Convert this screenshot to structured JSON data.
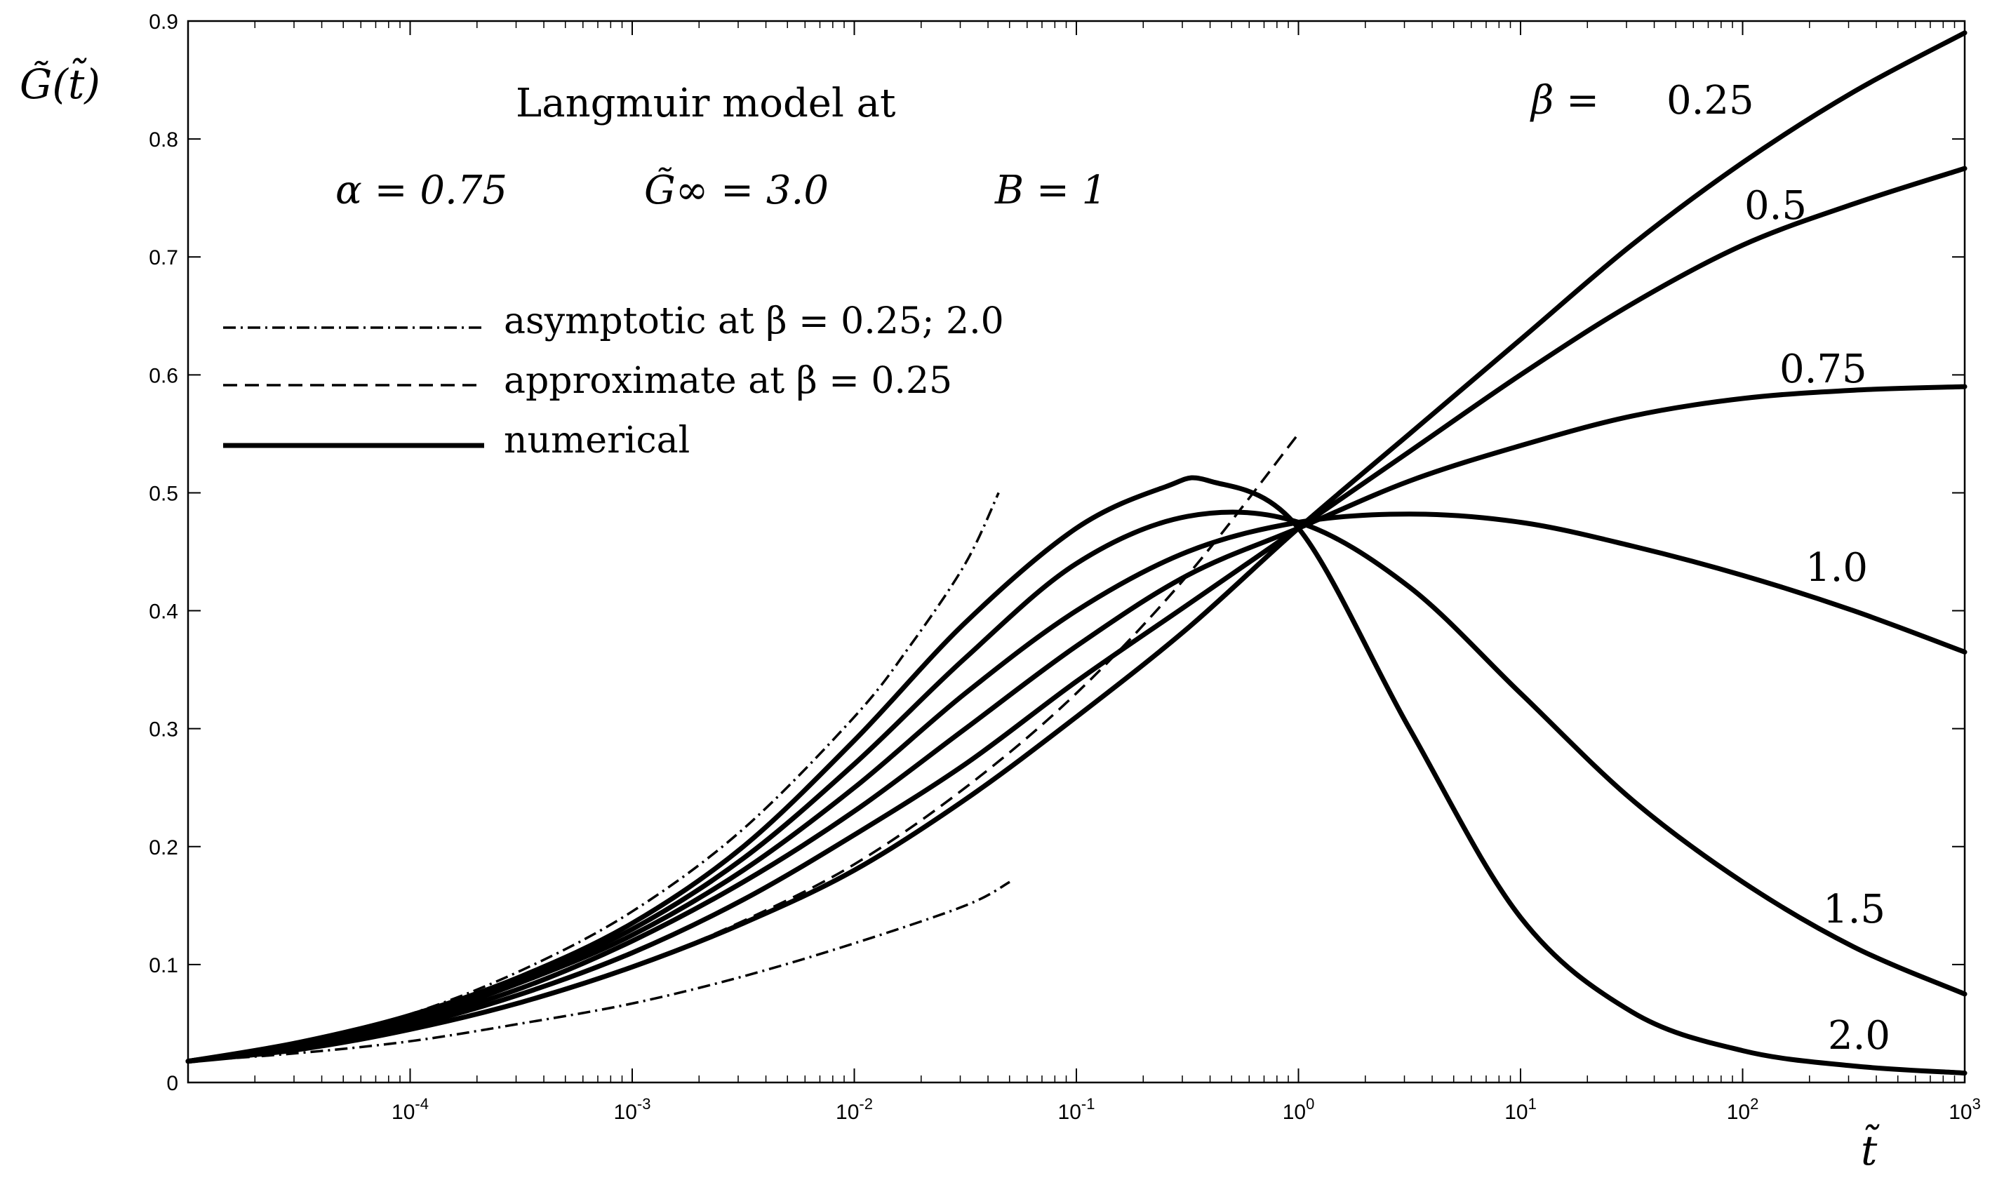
{
  "chart_data": {
    "type": "line",
    "xscale": "log",
    "xlim_log10": [
      -5,
      3
    ],
    "ylim": [
      0,
      0.9
    ],
    "yticks": [
      "0",
      "0.1",
      "0.2",
      "0.3",
      "0.4",
      "0.5",
      "0.6",
      "0.7",
      "0.8",
      "0.9"
    ],
    "xticks": [
      {
        "base": "10",
        "exp": "-4",
        "log": -4
      },
      {
        "base": "10",
        "exp": "-3",
        "log": -3
      },
      {
        "base": "10",
        "exp": "-2",
        "log": -2
      },
      {
        "base": "10",
        "exp": "-1",
        "log": -1
      },
      {
        "base": "10",
        "exp": "0",
        "log": 0
      },
      {
        "base": "10",
        "exp": "1",
        "log": 1
      },
      {
        "base": "10",
        "exp": "2",
        "log": 2
      },
      {
        "base": "10",
        "exp": "3",
        "log": 3
      }
    ],
    "ylabel": "G̃(t̃)",
    "xlabel": "t̃",
    "annotations": {
      "title_line1": "Langmuir model at",
      "alpha": "α = 0.75",
      "ginf": "G̃∞ = 3.0",
      "b": "B = 1",
      "beta_prefix": "β ="
    },
    "legend": [
      {
        "style": "dashdot",
        "label": "asymptotic at β = 0.25; 2.0"
      },
      {
        "style": "dashed",
        "label": "approximate at β = 0.25"
      },
      {
        "style": "solid",
        "label": "numerical"
      }
    ],
    "series": [
      {
        "name": "β = 0.25",
        "label": "0.25",
        "style": "solid",
        "x_log10": [
          -5,
          -4.5,
          -4,
          -3.5,
          -3,
          -2.5,
          -2,
          -1.5,
          -1,
          -0.5,
          0,
          0.5,
          1,
          1.5,
          2,
          2.5,
          3
        ],
        "y": [
          0.018,
          0.028,
          0.045,
          0.068,
          0.098,
          0.135,
          0.18,
          0.24,
          0.31,
          0.385,
          0.47,
          0.55,
          0.63,
          0.71,
          0.78,
          0.84,
          0.89
        ]
      },
      {
        "name": "β = 0.5",
        "label": "0.5",
        "style": "solid",
        "x_log10": [
          -5,
          -4.5,
          -4,
          -3.5,
          -3,
          -2.5,
          -2,
          -1.5,
          -1,
          -0.5,
          0,
          0.5,
          1,
          1.5,
          2,
          2.5,
          3
        ],
        "y": [
          0.018,
          0.03,
          0.048,
          0.075,
          0.11,
          0.155,
          0.21,
          0.27,
          0.34,
          0.405,
          0.47,
          0.535,
          0.6,
          0.66,
          0.71,
          0.745,
          0.775
        ]
      },
      {
        "name": "β = 0.75",
        "label": "0.75",
        "style": "solid",
        "x_log10": [
          -5,
          -4.5,
          -4,
          -3.5,
          -3,
          -2.5,
          -2,
          -1.5,
          -1,
          -0.5,
          0,
          0.5,
          1,
          1.5,
          2,
          2.5,
          3
        ],
        "y": [
          0.018,
          0.031,
          0.051,
          0.08,
          0.12,
          0.17,
          0.23,
          0.3,
          0.37,
          0.43,
          0.47,
          0.51,
          0.54,
          0.565,
          0.58,
          0.587,
          0.59
        ]
      },
      {
        "name": "β = 1.0",
        "label": "1.0",
        "style": "solid",
        "x_log10": [
          -5,
          -4.5,
          -4,
          -3.5,
          -3,
          -2.5,
          -2,
          -1.5,
          -1,
          -0.5,
          0,
          0.5,
          1,
          1.5,
          2,
          2.5,
          3
        ],
        "y": [
          0.018,
          0.032,
          0.053,
          0.085,
          0.125,
          0.18,
          0.25,
          0.33,
          0.4,
          0.45,
          0.475,
          0.482,
          0.475,
          0.455,
          0.43,
          0.4,
          0.365
        ]
      },
      {
        "name": "β = 1.5",
        "label": "1.5",
        "style": "solid",
        "x_log10": [
          -5,
          -4.5,
          -4,
          -3.5,
          -3,
          -2.5,
          -2,
          -1.5,
          -1,
          -0.5,
          0,
          0.5,
          1,
          1.5,
          2,
          2.5,
          3
        ],
        "y": [
          0.018,
          0.033,
          0.055,
          0.088,
          0.13,
          0.19,
          0.27,
          0.36,
          0.44,
          0.48,
          0.475,
          0.42,
          0.33,
          0.24,
          0.17,
          0.115,
          0.075
        ]
      },
      {
        "name": "β = 2.0",
        "label": "2.0",
        "style": "solid",
        "x_log10": [
          -5,
          -4.5,
          -4,
          -3.5,
          -3,
          -2.5,
          -2,
          -1.5,
          -1,
          -0.6,
          -0.4,
          0,
          0.5,
          1,
          1.5,
          2,
          2.5,
          3
        ],
        "y": [
          0.018,
          0.034,
          0.057,
          0.09,
          0.135,
          0.2,
          0.29,
          0.39,
          0.47,
          0.505,
          0.51,
          0.47,
          0.3,
          0.14,
          0.06,
          0.027,
          0.014,
          0.008
        ]
      },
      {
        "name": "asymptotic β = 0.25",
        "style": "dashdot",
        "x_log10": [
          -5,
          -4.5,
          -4,
          -3.5,
          -3,
          -2.5,
          -2,
          -1.5,
          -1.3
        ],
        "y": [
          0.018,
          0.025,
          0.035,
          0.05,
          0.067,
          0.09,
          0.118,
          0.15,
          0.17
        ]
      },
      {
        "name": "asymptotic β = 2.0",
        "style": "dashdot",
        "x_log10": [
          -5,
          -4.5,
          -4,
          -3.5,
          -3,
          -2.5,
          -2,
          -1.75,
          -1.5,
          -1.35
        ],
        "y": [
          0.018,
          0.034,
          0.058,
          0.095,
          0.145,
          0.215,
          0.31,
          0.37,
          0.44,
          0.5
        ]
      },
      {
        "name": "approximate β = 0.25",
        "style": "dashed",
        "x_log10": [
          -5,
          -4.5,
          -4,
          -3.5,
          -3,
          -2.5,
          -2,
          -1.5,
          -1,
          -0.5,
          0
        ],
        "y": [
          0.018,
          0.028,
          0.045,
          0.068,
          0.098,
          0.137,
          0.185,
          0.25,
          0.33,
          0.43,
          0.55
        ]
      }
    ]
  }
}
